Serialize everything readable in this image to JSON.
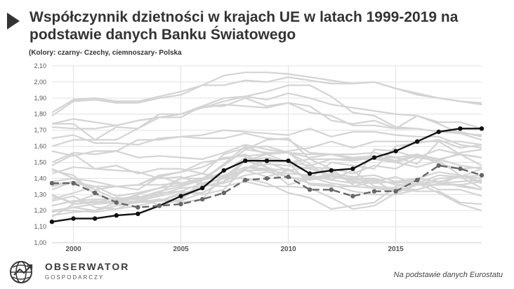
{
  "chart_data": {
    "type": "line",
    "title": "Współczynnik dzietności w krajach UE w latach 1999-2019 na podstawie danych Banku Światowego",
    "subtitle": "(Kolory: czarny- Czechy, ciemnoszary- Polska",
    "source": "Na podstawie danych Eurostatu",
    "x": [
      1999,
      2000,
      2001,
      2002,
      2003,
      2004,
      2005,
      2006,
      2007,
      2008,
      2009,
      2010,
      2011,
      2012,
      2013,
      2014,
      2015,
      2016,
      2017,
      2018,
      2019
    ],
    "xlim": [
      1999,
      2019
    ],
    "x_ticks": [
      "2000",
      "2005",
      "2010",
      "2015"
    ],
    "x_tick_values": [
      2000,
      2005,
      2010,
      2015
    ],
    "ylim": [
      1.0,
      2.1
    ],
    "y_ticks": [
      "1,00",
      "1,10",
      "1,20",
      "1,30",
      "1,40",
      "1,50",
      "1,60",
      "1,70",
      "1,80",
      "1,90",
      "2,00",
      "2,10"
    ],
    "y_tick_values": [
      1.0,
      1.1,
      1.2,
      1.3,
      1.4,
      1.5,
      1.6,
      1.7,
      1.8,
      1.9,
      2.0,
      2.1
    ],
    "grid": true,
    "highlight_series": [
      {
        "name": "Czechy",
        "color": "#111111",
        "style": "solid",
        "values": [
          1.13,
          1.15,
          1.15,
          1.17,
          1.18,
          1.23,
          1.29,
          1.34,
          1.45,
          1.51,
          1.51,
          1.51,
          1.43,
          1.45,
          1.46,
          1.53,
          1.57,
          1.63,
          1.69,
          1.71,
          1.71
        ]
      },
      {
        "name": "Polska",
        "color": "#666666",
        "style": "dashed",
        "values": [
          1.37,
          1.37,
          1.31,
          1.25,
          1.22,
          1.23,
          1.24,
          1.27,
          1.31,
          1.39,
          1.4,
          1.41,
          1.33,
          1.33,
          1.29,
          1.32,
          1.32,
          1.39,
          1.48,
          1.46,
          1.42
        ]
      }
    ],
    "background_color": "#d4d4d4",
    "background_series": [
      {
        "values": [
          1.81,
          1.89,
          1.9,
          1.88,
          1.88,
          1.91,
          1.94,
          1.98,
          1.98,
          2.01,
          2.0,
          2.03,
          2.01,
          1.99,
          1.99,
          2.0,
          1.96,
          1.92,
          1.9,
          1.88,
          1.86
        ]
      },
      {
        "values": [
          1.79,
          1.88,
          1.89,
          1.87,
          1.87,
          1.9,
          1.92,
          1.98,
          2.04,
          2.06,
          2.06,
          2.05,
          2.03,
          2.01,
          1.99,
          2.0,
          1.96,
          1.93,
          1.9,
          1.88,
          1.87
        ]
      },
      {
        "values": [
          1.72,
          1.71,
          1.71,
          1.73,
          1.76,
          1.78,
          1.78,
          1.85,
          1.9,
          1.91,
          1.89,
          1.93,
          1.9,
          1.86,
          1.84,
          1.82,
          1.8,
          1.79,
          1.74,
          1.68,
          1.64
        ]
      },
      {
        "values": [
          1.6,
          1.64,
          1.64,
          1.64,
          1.71,
          1.78,
          1.8,
          1.84,
          1.86,
          1.85,
          1.84,
          1.87,
          1.81,
          1.79,
          1.73,
          1.73,
          1.71,
          1.79,
          1.75,
          1.75,
          1.71
        ]
      },
      {
        "values": [
          1.74,
          1.77,
          1.75,
          1.73,
          1.76,
          1.78,
          1.8,
          1.84,
          1.88,
          1.91,
          1.94,
          1.98,
          1.98,
          1.91,
          1.81,
          1.79,
          1.72,
          1.71,
          1.69,
          1.68,
          1.67
        ]
      },
      {
        "values": [
          1.74,
          1.74,
          1.64,
          1.72,
          1.71,
          1.8,
          1.8,
          1.85,
          1.85,
          1.9,
          1.85,
          1.87,
          1.85,
          1.76,
          1.74,
          1.76,
          1.71,
          1.71,
          1.69,
          1.69,
          1.66
        ]
      },
      {
        "values": [
          1.5,
          1.56,
          1.55,
          1.57,
          1.64,
          1.64,
          1.66,
          1.67,
          1.7,
          1.69,
          1.68,
          1.67,
          1.71,
          1.66,
          1.69,
          1.69,
          1.67,
          1.66,
          1.66,
          1.61,
          1.59
        ]
      },
      {
        "values": [
          1.35,
          1.38,
          1.35,
          1.35,
          1.36,
          1.42,
          1.44,
          1.47,
          1.53,
          1.54,
          1.55,
          1.56,
          1.53,
          1.55,
          1.52,
          1.52,
          1.5,
          1.54,
          1.52,
          1.55,
          1.53
        ]
      },
      {
        "values": [
          1.65,
          1.67,
          1.62,
          1.62,
          1.61,
          1.65,
          1.66,
          1.65,
          1.65,
          1.68,
          1.65,
          1.64,
          1.56,
          1.55,
          1.55,
          1.56,
          1.53,
          1.55,
          1.52,
          1.48,
          1.46
        ]
      },
      {
        "values": [
          1.46,
          1.4,
          1.33,
          1.35,
          1.33,
          1.41,
          1.44,
          1.5,
          1.52,
          1.55,
          1.47,
          1.36,
          1.4,
          1.5,
          1.48,
          1.46,
          1.6,
          1.62,
          1.64,
          1.59,
          1.61
        ]
      },
      {
        "values": [
          1.23,
          1.26,
          1.27,
          1.27,
          1.27,
          1.31,
          1.32,
          1.37,
          1.4,
          1.46,
          1.49,
          1.48,
          1.46,
          1.42,
          1.38,
          1.34,
          1.33,
          1.32,
          1.32,
          1.25,
          1.24
        ]
      },
      {
        "values": [
          1.2,
          1.2,
          1.19,
          1.21,
          1.23,
          1.26,
          1.3,
          1.35,
          1.38,
          1.46,
          1.52,
          1.5,
          1.36,
          1.35,
          1.35,
          1.34,
          1.32,
          1.4,
          1.44,
          1.42,
          1.38
        ]
      },
      {
        "values": [
          1.3,
          1.24,
          1.25,
          1.28,
          1.27,
          1.3,
          1.34,
          1.35,
          1.37,
          1.42,
          1.44,
          1.41,
          1.37,
          1.36,
          1.32,
          1.3,
          1.3,
          1.33,
          1.37,
          1.36,
          1.33
        ]
      },
      {
        "values": [
          1.33,
          1.38,
          1.33,
          1.27,
          1.29,
          1.23,
          1.27,
          1.36,
          1.4,
          1.51,
          1.53,
          1.5,
          1.48,
          1.52,
          1.51,
          1.53,
          1.53,
          1.49,
          1.63,
          1.55,
          1.53
        ]
      },
      {
        "values": [
          1.38,
          1.4,
          1.38,
          1.35,
          1.36,
          1.41,
          1.37,
          1.4,
          1.41,
          1.51,
          1.47,
          1.41,
          1.39,
          1.42,
          1.39,
          1.39,
          1.37,
          1.39,
          1.33,
          1.33,
          1.29
        ]
      },
      {
        "values": [
          1.26,
          1.29,
          1.22,
          1.21,
          1.26,
          1.29,
          1.32,
          1.3,
          1.33,
          1.47,
          1.46,
          1.45,
          1.4,
          1.43,
          1.41,
          1.42,
          1.38,
          1.4,
          1.38,
          1.35,
          1.33
        ]
      },
      {
        "values": [
          1.16,
          1.24,
          1.26,
          1.24,
          1.25,
          1.27,
          1.26,
          1.31,
          1.38,
          1.51,
          1.55,
          1.57,
          1.59,
          1.63,
          1.59,
          1.63,
          1.63,
          1.63,
          1.63,
          1.63,
          1.61
        ]
      },
      {
        "values": [
          1.2,
          1.22,
          1.2,
          1.25,
          1.28,
          1.32,
          1.35,
          1.39,
          1.44,
          1.53,
          1.5,
          1.45,
          1.47,
          1.46,
          1.36,
          1.58,
          1.57,
          1.53,
          1.58,
          1.55,
          1.48
        ]
      },
      {
        "values": [
          1.36,
          1.38,
          1.35,
          1.35,
          1.36,
          1.36,
          1.37,
          1.39,
          1.42,
          1.47,
          1.45,
          1.46,
          1.39,
          1.41,
          1.4,
          1.4,
          1.36,
          1.36,
          1.36,
          1.36,
          1.38
        ]
      },
      {
        "values": [
          1.43,
          1.47,
          1.46,
          1.48,
          1.43,
          1.46,
          1.46,
          1.43,
          1.4,
          1.4,
          1.37,
          1.31,
          1.28,
          1.21,
          1.23,
          1.25,
          1.35,
          1.37,
          1.31,
          1.24,
          1.2
        ]
      },
      {
        "values": [
          1.29,
          1.25,
          1.3,
          1.26,
          1.28,
          1.31,
          1.4,
          1.4,
          1.48,
          1.58,
          1.56,
          1.56,
          1.46,
          1.44,
          1.38,
          1.37,
          1.38,
          1.36,
          1.36,
          1.42,
          1.37
        ]
      },
      {
        "values": [
          1.48,
          1.55,
          1.46,
          1.45,
          1.44,
          1.4,
          1.41,
          1.36,
          1.35,
          1.38,
          1.35,
          1.35,
          1.34,
          1.28,
          1.21,
          1.23,
          1.31,
          1.36,
          1.38,
          1.41,
          1.34
        ]
      },
      {
        "values": [
          1.23,
          1.26,
          1.25,
          1.26,
          1.3,
          1.34,
          1.4,
          1.43,
          1.55,
          1.59,
          1.6,
          1.56,
          1.49,
          1.39,
          1.37,
          1.39,
          1.31,
          1.37,
          1.42,
          1.41,
          1.42
        ]
      },
      {
        "values": [
          1.27,
          1.31,
          1.35,
          1.29,
          1.31,
          1.34,
          1.36,
          1.39,
          1.49,
          1.6,
          1.55,
          1.5,
          1.52,
          1.52,
          1.52,
          1.53,
          1.5,
          1.47,
          1.51,
          1.56,
          1.58
        ]
      },
      {
        "values": [
          1.19,
          1.22,
          1.24,
          1.25,
          1.26,
          1.26,
          1.26,
          1.39,
          1.48,
          1.58,
          1.64,
          1.65,
          1.52,
          1.46,
          1.43,
          1.48,
          1.46,
          1.53,
          1.51,
          1.42,
          1.4
        ]
      },
      {
        "values": [
          1.45,
          1.42,
          1.3,
          1.26,
          1.25,
          1.27,
          1.25,
          1.27,
          1.42,
          1.45,
          1.41,
          1.45,
          1.41,
          1.37,
          1.35,
          1.38,
          1.41,
          1.36,
          1.4,
          1.41,
          1.46
        ]
      },
      {
        "values": [
          1.17,
          1.19,
          1.2,
          1.23,
          1.25,
          1.26,
          1.31,
          1.31,
          1.38,
          1.45,
          1.45,
          1.43,
          1.42,
          1.39,
          1.45,
          1.35,
          1.34,
          1.33,
          1.37,
          1.38,
          1.39
        ]
      },
      {
        "values": [
          1.57,
          1.54,
          1.57,
          1.57,
          1.53,
          1.54,
          1.53,
          1.52,
          1.56,
          1.61,
          1.58,
          1.56,
          1.55,
          1.55,
          1.53,
          1.54,
          1.51,
          1.55,
          1.49,
          1.46,
          1.47
        ]
      }
    ]
  },
  "logo": {
    "name": "OBSERWATOR",
    "tagline": "GOSPODARCZY"
  }
}
